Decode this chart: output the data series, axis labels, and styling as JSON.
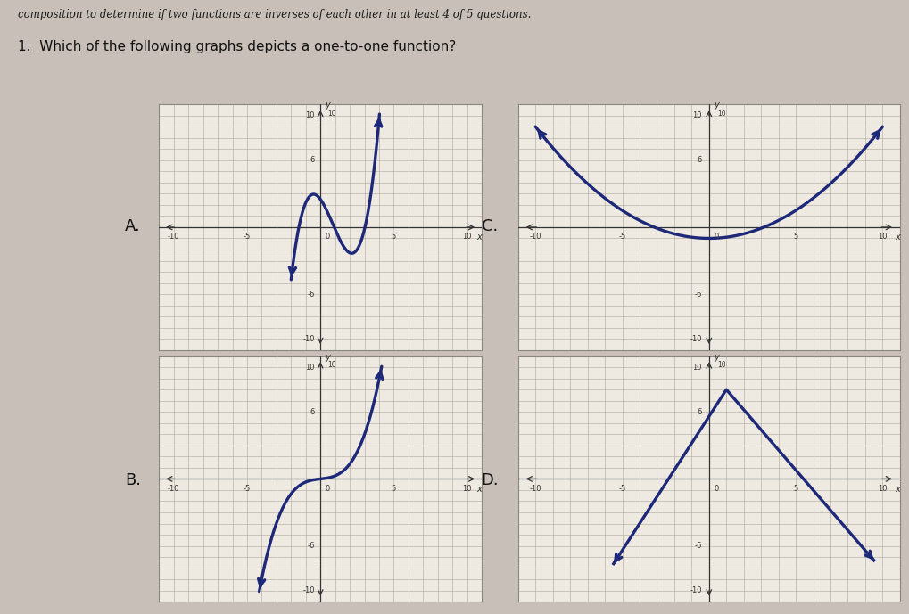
{
  "background_color": "#c8c0b8",
  "panel_bg": "#eeeae2",
  "grid_color": "#aaa898",
  "axis_color": "#333333",
  "curve_color": "#1e2878",
  "curve_lw": 2.4,
  "header_text": "composition to determine if two functions are inverses of each other in at least 4 of 5 questions.",
  "title_text": "1.  Which of the following graphs depicts a one-to-one function?",
  "labels": [
    "A.",
    "B.",
    "C.",
    "D."
  ],
  "header_bg": "#e8e4dc",
  "border_color": "#888880"
}
